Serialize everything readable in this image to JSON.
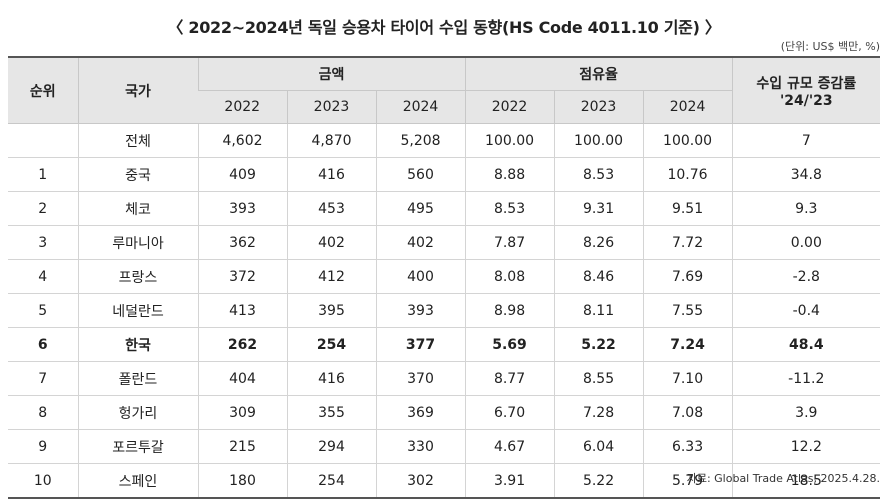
{
  "title": "〈 2022~2024년 독일 승용차 타이어 수입 동향(HS Code 4011.10 기준) 〉",
  "unit": "(단위: US$ 백만, %)",
  "headers": {
    "rank": "순위",
    "country": "국가",
    "amount": "금액",
    "share": "점유율",
    "growth": "수입 규모 증감률 '24/'23",
    "years": [
      "2022",
      "2023",
      "2024"
    ]
  },
  "rows": [
    {
      "rank": "",
      "country": "전체",
      "a2022": "4,602",
      "a2023": "4,870",
      "a2024": "5,208",
      "s2022": "100.00",
      "s2023": "100.00",
      "s2024": "100.00",
      "growth": "7"
    },
    {
      "rank": "1",
      "country": "중국",
      "a2022": "409",
      "a2023": "416",
      "a2024": "560",
      "s2022": "8.88",
      "s2023": "8.53",
      "s2024": "10.76",
      "growth": "34.8"
    },
    {
      "rank": "2",
      "country": "체코",
      "a2022": "393",
      "a2023": "453",
      "a2024": "495",
      "s2022": "8.53",
      "s2023": "9.31",
      "s2024": "9.51",
      "growth": "9.3"
    },
    {
      "rank": "3",
      "country": "루마니아",
      "a2022": "362",
      "a2023": "402",
      "a2024": "402",
      "s2022": "7.87",
      "s2023": "8.26",
      "s2024": "7.72",
      "growth": "0.00"
    },
    {
      "rank": "4",
      "country": "프랑스",
      "a2022": "372",
      "a2023": "412",
      "a2024": "400",
      "s2022": "8.08",
      "s2023": "8.46",
      "s2024": "7.69",
      "growth": "-2.8"
    },
    {
      "rank": "5",
      "country": "네덜란드",
      "a2022": "413",
      "a2023": "395",
      "a2024": "393",
      "s2022": "8.98",
      "s2023": "8.11",
      "s2024": "7.55",
      "growth": "-0.4"
    },
    {
      "rank": "6",
      "country": "한국",
      "a2022": "262",
      "a2023": "254",
      "a2024": "377",
      "s2022": "5.69",
      "s2023": "5.22",
      "s2024": "7.24",
      "growth": "48.4",
      "highlight": true
    },
    {
      "rank": "7",
      "country": "폴란드",
      "a2022": "404",
      "a2023": "416",
      "a2024": "370",
      "s2022": "8.77",
      "s2023": "8.55",
      "s2024": "7.10",
      "growth": "-11.2"
    },
    {
      "rank": "8",
      "country": "헝가리",
      "a2022": "309",
      "a2023": "355",
      "a2024": "369",
      "s2022": "6.70",
      "s2023": "7.28",
      "s2024": "7.08",
      "growth": "3.9"
    },
    {
      "rank": "9",
      "country": "포르투갈",
      "a2022": "215",
      "a2023": "294",
      "a2024": "330",
      "s2022": "4.67",
      "s2023": "6.04",
      "s2024": "6.33",
      "growth": "12.2"
    },
    {
      "rank": "10",
      "country": "스페인",
      "a2022": "180",
      "a2023": "254",
      "a2024": "302",
      "s2022": "3.91",
      "s2023": "5.22",
      "s2024": "5.79",
      "growth": "18.5"
    }
  ],
  "source": "자료: Global Trade Atlas, 2025.4.28."
}
